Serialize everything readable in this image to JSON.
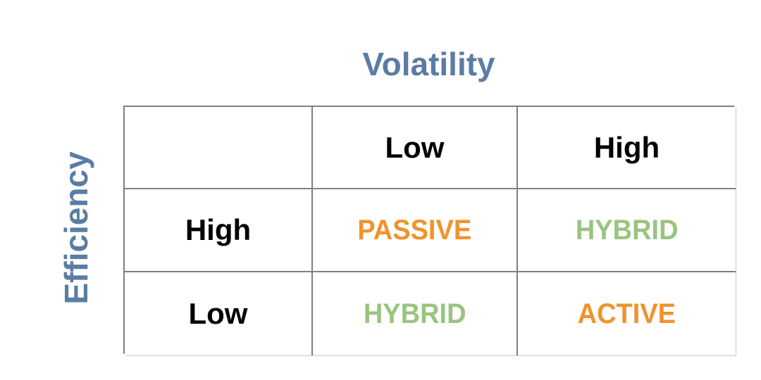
{
  "matrix": {
    "x_axis_title": "Volatility",
    "y_axis_title": "Efficiency",
    "column_headers": [
      "Low",
      "High"
    ],
    "row_headers": [
      "High",
      "Low"
    ],
    "cells": [
      [
        "PASSIVE",
        "HYBRID"
      ],
      [
        "HYBRID",
        "ACTIVE"
      ]
    ],
    "cell_colors": [
      [
        "#f0932c",
        "#9ac47f"
      ],
      [
        "#9ac47f",
        "#f0932c"
      ]
    ]
  },
  "colors": {
    "axis_label": "#5b7ca3",
    "orange": "#f0932c",
    "green": "#9ac47f",
    "header_text": "#000000",
    "grid_border": "#7f7f7f",
    "background": "#ffffff"
  }
}
